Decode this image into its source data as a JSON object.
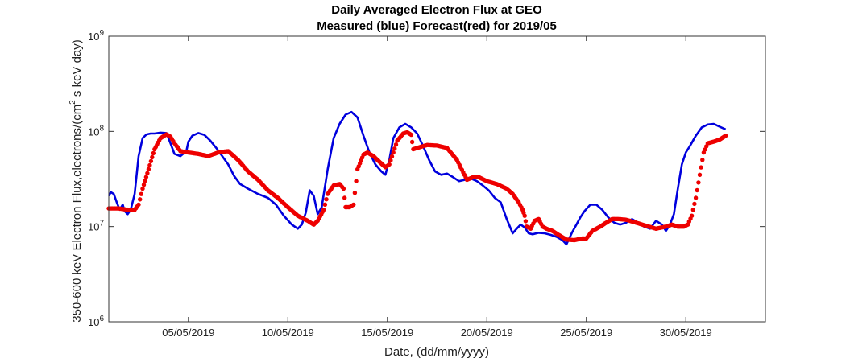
{
  "chart_data": {
    "type": "line",
    "title": "Daily Averaged Electron Flux at GEO",
    "subtitle": "Measured (blue) Forecast(red) for 2019/05",
    "xlabel": "Date, (dd/mm/yyyy)",
    "ylabel_prefix": "350-600 keV Electron Flux,electrons/(cm",
    "ylabel_sup": "2",
    "ylabel_suffix": " s keV day)",
    "xlim": [
      1,
      34
    ],
    "ylim": [
      1000000,
      1000000000
    ],
    "yscale": "log",
    "x_ticks": [
      {
        "value": 5,
        "label": "05/05/2019"
      },
      {
        "value": 10,
        "label": "10/05/2019"
      },
      {
        "value": 15,
        "label": "15/05/2019"
      },
      {
        "value": 20,
        "label": "20/05/2019"
      },
      {
        "value": 25,
        "label": "25/05/2019"
      },
      {
        "value": 30,
        "label": "30/05/2019"
      }
    ],
    "y_ticks": [
      {
        "value": 1000000,
        "base": "10",
        "exp": "6"
      },
      {
        "value": 10000000,
        "base": "10",
        "exp": "7"
      },
      {
        "value": 100000000,
        "base": "10",
        "exp": "8"
      },
      {
        "value": 1000000000,
        "base": "10",
        "exp": "9"
      }
    ],
    "grid": false,
    "series": [
      {
        "name": "Measured",
        "color": "#0000dd",
        "style": "line",
        "x": [
          1.0,
          1.1,
          1.25,
          1.4,
          1.55,
          1.7,
          1.8,
          1.95,
          2.1,
          2.3,
          2.5,
          2.7,
          2.9,
          3.1,
          3.3,
          3.6,
          3.9,
          4.1,
          4.3,
          4.6,
          4.9,
          5.0,
          5.2,
          5.5,
          5.8,
          6.1,
          6.4,
          6.7,
          7.0,
          7.3,
          7.6,
          8.0,
          8.5,
          9.0,
          9.4,
          9.8,
          10.2,
          10.5,
          10.7,
          10.9,
          11.1,
          11.3,
          11.5,
          11.7,
          12.0,
          12.3,
          12.6,
          12.9,
          13.2,
          13.5,
          13.8,
          14.1,
          14.4,
          14.7,
          14.9,
          15.1,
          15.3,
          15.6,
          15.9,
          16.2,
          16.5,
          16.8,
          17.1,
          17.4,
          17.7,
          18.0,
          18.3,
          18.6,
          18.9,
          19.2,
          19.5,
          19.8,
          20.1,
          20.4,
          20.7,
          21.0,
          21.3,
          21.5,
          21.7,
          21.9,
          22.1,
          22.3,
          22.6,
          22.9,
          23.2,
          23.5,
          23.8,
          24.0,
          24.1,
          24.3,
          24.5,
          24.7,
          24.9,
          25.2,
          25.5,
          25.8,
          26.1,
          26.4,
          26.7,
          27.0,
          27.3,
          27.6,
          27.9,
          28.2,
          28.5,
          28.8,
          29.0,
          29.2,
          29.4,
          29.6,
          29.8,
          30.0,
          30.2,
          30.5,
          30.8,
          31.1,
          31.4,
          31.7,
          32.0
        ],
        "y": [
          21000000,
          23000000,
          22000000,
          18000000,
          15000000,
          17000000,
          14500000,
          13500000,
          15000000,
          22000000,
          55000000,
          85000000,
          93000000,
          95000000,
          95000000,
          97000000,
          96000000,
          75000000,
          58000000,
          55000000,
          62000000,
          78000000,
          90000000,
          96000000,
          92000000,
          80000000,
          67000000,
          55000000,
          45000000,
          34000000,
          28000000,
          25000000,
          22000000,
          20000000,
          17000000,
          13000000,
          10500000,
          9500000,
          10500000,
          14000000,
          24000000,
          21000000,
          13500000,
          16000000,
          40000000,
          85000000,
          120000000,
          150000000,
          160000000,
          140000000,
          90000000,
          60000000,
          45000000,
          38000000,
          35000000,
          50000000,
          85000000,
          110000000,
          120000000,
          110000000,
          95000000,
          70000000,
          50000000,
          38000000,
          35000000,
          36000000,
          33000000,
          30000000,
          31000000,
          32000000,
          30000000,
          27000000,
          24000000,
          20000000,
          18000000,
          12000000,
          8500000,
          9500000,
          10500000,
          9800000,
          8500000,
          8300000,
          8600000,
          8500000,
          8200000,
          7800000,
          7200000,
          6500000,
          7200000,
          8800000,
          10500000,
          12500000,
          14500000,
          17000000,
          17000000,
          15000000,
          12500000,
          11000000,
          10500000,
          11000000,
          12000000,
          11000000,
          10000000,
          9500000,
          11500000,
          10500000,
          9000000,
          10500000,
          13500000,
          25000000,
          45000000,
          60000000,
          70000000,
          90000000,
          110000000,
          118000000,
          120000000,
          112000000,
          105000000
        ]
      },
      {
        "name": "Forecast",
        "color": "#ee0000",
        "style": "dots",
        "x": [
          1.0,
          1.5,
          2.0,
          2.3,
          2.5,
          2.7,
          3.0,
          3.3,
          3.6,
          3.9,
          4.1,
          4.3,
          4.6,
          5.0,
          5.5,
          6.0,
          6.5,
          7.0,
          7.5,
          8.0,
          8.5,
          9.0,
          9.5,
          10.0,
          10.5,
          11.0,
          11.3,
          11.5,
          11.8,
          12.0,
          12.3,
          12.6,
          12.8,
          12.9,
          13.1,
          13.3,
          13.5,
          13.8,
          14.0,
          14.3,
          14.6,
          14.9,
          15.1,
          15.3,
          15.5,
          15.8,
          16.0,
          16.2,
          16.3,
          16.5,
          17.0,
          17.5,
          18.0,
          18.5,
          19.0,
          19.3,
          19.6,
          20.0,
          20.5,
          21.0,
          21.3,
          21.6,
          21.8,
          21.9,
          22.0,
          22.2,
          22.4,
          22.6,
          22.8,
          23.0,
          23.3,
          23.6,
          24.0,
          24.4,
          24.8,
          25.0,
          25.3,
          25.7,
          26.0,
          26.3,
          26.6,
          27.0,
          27.5,
          28.0,
          28.5,
          29.0,
          29.3,
          29.6,
          29.9,
          30.1,
          30.3,
          30.5,
          30.7,
          30.9,
          31.1,
          31.4,
          31.7,
          32.0
        ],
        "y": [
          15500000,
          15500000,
          15000000,
          15000000,
          17000000,
          25000000,
          40000000,
          65000000,
          85000000,
          93000000,
          88000000,
          75000000,
          62000000,
          60000000,
          58000000,
          55000000,
          60000000,
          62000000,
          50000000,
          38000000,
          31000000,
          24000000,
          20000000,
          16000000,
          13000000,
          11500000,
          10500000,
          11500000,
          15000000,
          22000000,
          27000000,
          28000000,
          25000000,
          16000000,
          16000000,
          17000000,
          40000000,
          57000000,
          60000000,
          55000000,
          48000000,
          42000000,
          45000000,
          60000000,
          80000000,
          95000000,
          98000000,
          92000000,
          65000000,
          67000000,
          72000000,
          71000000,
          67000000,
          50000000,
          31000000,
          33000000,
          33000000,
          30000000,
          28000000,
          25000000,
          22000000,
          18000000,
          15000000,
          13000000,
          10000000,
          9500000,
          11500000,
          12000000,
          10000000,
          9500000,
          9000000,
          8200000,
          7300000,
          7200000,
          7500000,
          7500000,
          9000000,
          10000000,
          11000000,
          12000000,
          12000000,
          11800000,
          11000000,
          10200000,
          9500000,
          10000000,
          10500000,
          10000000,
          10000000,
          10500000,
          13000000,
          20000000,
          35000000,
          60000000,
          75000000,
          78000000,
          82000000,
          90000000
        ]
      }
    ]
  }
}
